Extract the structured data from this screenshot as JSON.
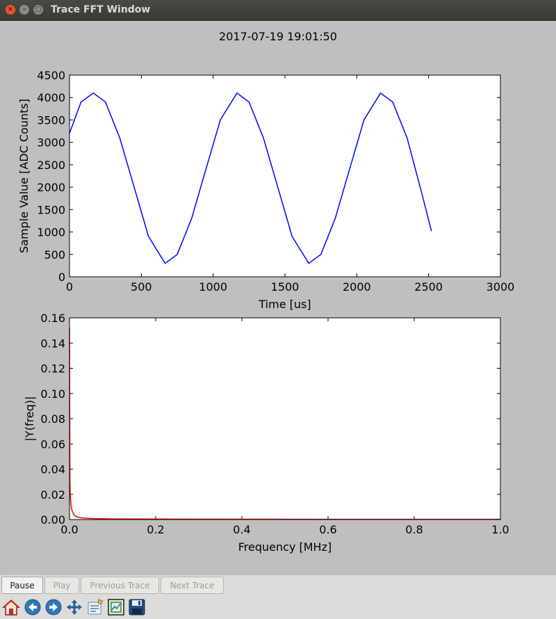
{
  "window": {
    "title": "Trace FFT Window"
  },
  "figure": {
    "timestamp": "2017-07-19 19:01:50"
  },
  "controls": {
    "pause": "Pause",
    "play": "Play",
    "previous": "Previous Trace",
    "next": "Next Trace"
  },
  "toolbar": {
    "icons": [
      "home-icon",
      "back-icon",
      "forward-icon",
      "pan-icon",
      "configure-icon",
      "zoom-icon",
      "save-icon"
    ]
  },
  "colors": {
    "trace": "#0000ff",
    "fft": "#ff0000",
    "background": "#bfbfbf"
  },
  "chart_data": [
    {
      "type": "line",
      "xlabel": "Time [us]",
      "ylabel": "Sample Value [ADC Counts]",
      "xlim": [
        0,
        3000
      ],
      "ylim": [
        0,
        4500
      ],
      "xticks": [
        "0",
        "500",
        "1000",
        "1500",
        "2000",
        "2500",
        "3000"
      ],
      "yticks": [
        "0",
        "500",
        "1000",
        "1500",
        "2000",
        "2500",
        "3000",
        "3500",
        "4000",
        "4500"
      ],
      "series": [
        {
          "x": [
            0,
            80,
            166,
            250,
            350,
            450,
            550,
            666,
            750,
            850,
            950,
            1050,
            1166,
            1250,
            1350,
            1450,
            1550,
            1666,
            1750,
            1850,
            1950,
            2050,
            2166,
            2250,
            2350,
            2450,
            2520
          ],
          "values": [
            3200,
            3900,
            4100,
            3900,
            3100,
            2000,
            900,
            300,
            500,
            1300,
            2400,
            3500,
            4100,
            3900,
            3100,
            2000,
            900,
            300,
            500,
            1300,
            2400,
            3500,
            4100,
            3900,
            3100,
            1900,
            1020
          ]
        }
      ]
    },
    {
      "type": "line",
      "xlabel": "Frequency [MHz]",
      "ylabel": "|Y(freq)|",
      "xlim": [
        0.0,
        1.0
      ],
      "ylim": [
        0.0,
        0.16
      ],
      "xticks": [
        "0.0",
        "0.2",
        "0.4",
        "0.6",
        "0.8",
        "1.0"
      ],
      "yticks": [
        "0.00",
        "0.02",
        "0.04",
        "0.06",
        "0.08",
        "0.10",
        "0.12",
        "0.14",
        "0.16"
      ],
      "series": [
        {
          "x": [
            0.0,
            0.001,
            0.002,
            0.004,
            0.006,
            0.01,
            0.015,
            0.02,
            0.03,
            0.05,
            0.1,
            0.2,
            0.4,
            0.6,
            0.8,
            1.0
          ],
          "values": [
            0.152,
            0.03,
            0.018,
            0.01,
            0.007,
            0.004,
            0.0025,
            0.0018,
            0.0012,
            0.0008,
            0.0005,
            0.0004,
            0.0003,
            0.0002,
            0.0002,
            0.0002
          ]
        }
      ]
    }
  ]
}
